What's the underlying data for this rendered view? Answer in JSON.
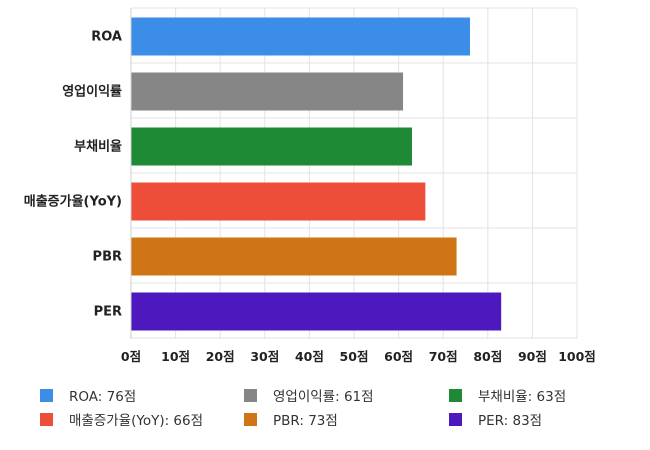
{
  "chart_data": {
    "type": "bar",
    "orientation": "horizontal",
    "categories": [
      "ROA",
      "영업이익률",
      "부채비율",
      "매출증가율(YoY)",
      "PBR",
      "PER"
    ],
    "values": [
      76,
      61,
      63,
      66,
      73,
      83
    ],
    "colors": [
      "#3b8de8",
      "#868686",
      "#1e8a36",
      "#ec4e39",
      "#cf7516",
      "#4d18be"
    ],
    "xlim": [
      0,
      100
    ],
    "xticks": [
      0,
      10,
      20,
      30,
      40,
      50,
      60,
      70,
      80,
      90,
      100
    ],
    "tick_suffix": "점",
    "grid": true,
    "legend": {
      "placement": "bottom",
      "items": [
        {
          "label": "ROA: 76점",
          "color": "#3b8de8"
        },
        {
          "label": "영업이익률: 61점",
          "color": "#868686"
        },
        {
          "label": "부채비율: 63점",
          "color": "#1e8a36"
        },
        {
          "label": "매출증가율(YoY): 66점",
          "color": "#ec4e39"
        },
        {
          "label": "PBR: 73점",
          "color": "#cf7516"
        },
        {
          "label": "PER: 83점",
          "color": "#4d18be"
        }
      ]
    }
  }
}
